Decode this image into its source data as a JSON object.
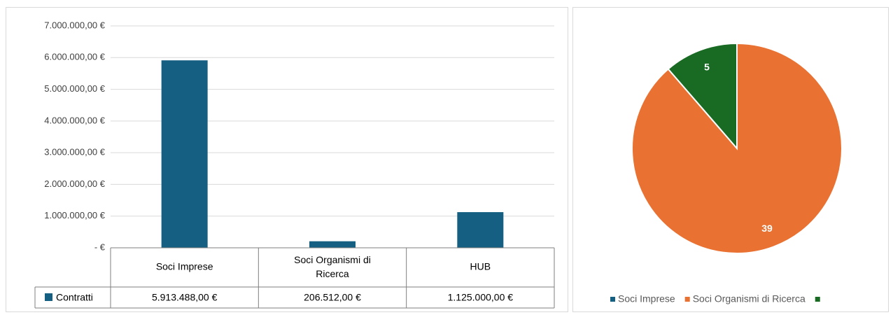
{
  "chart_data": [
    {
      "type": "bar",
      "categories": [
        "Soci Imprese",
        "Soci Organismi di Ricerca",
        "HUB"
      ],
      "series": [
        {
          "name": "Contratti",
          "color": "#156082",
          "values": [
            5913488,
            206512,
            1125000
          ],
          "value_labels": [
            "5.913.488,00 €",
            "206.512,00 €",
            "1.125.000,00 €"
          ]
        }
      ],
      "ylim": [
        0,
        7000000
      ],
      "yticks": [
        {
          "value": 0,
          "label": "-   €"
        },
        {
          "value": 1000000,
          "label": "1.000.000,00 €"
        },
        {
          "value": 2000000,
          "label": "2.000.000,00 €"
        },
        {
          "value": 3000000,
          "label": "3.000.000,00 €"
        },
        {
          "value": 4000000,
          "label": "4.000.000,00 €"
        },
        {
          "value": 5000000,
          "label": "5.000.000,00 €"
        },
        {
          "value": 6000000,
          "label": "6.000.000,00 €"
        },
        {
          "value": 7000000,
          "label": "7.000.000,00 €"
        }
      ],
      "grid": true,
      "data_table": true
    },
    {
      "type": "pie",
      "categories": [
        "Soci Imprese",
        "Soci Organismi di Ricerca",
        null
      ],
      "values": [
        0,
        39,
        5
      ],
      "colors": [
        "#156082",
        "#e97132",
        "#196b24"
      ],
      "legend": "bottom"
    }
  ]
}
